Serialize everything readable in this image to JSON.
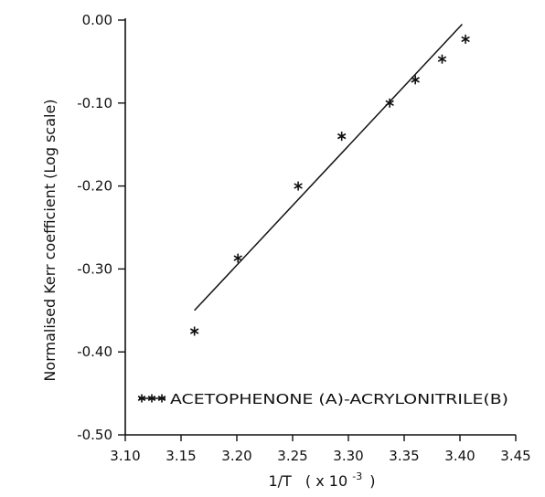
{
  "chart_data": {
    "type": "scatter",
    "title": "",
    "xlabel_main": "1/T",
    "xlabel_unit": "( x 10",
    "xlabel_exp": "-3",
    "xlabel_close": ")",
    "ylabel": "Normalised Kerr coefficient (Log scale)",
    "xlim": [
      3.1,
      3.45
    ],
    "ylim": [
      -0.5,
      0.0
    ],
    "x_ticks": [
      3.1,
      3.15,
      3.2,
      3.25,
      3.3,
      3.35,
      3.4,
      3.45
    ],
    "x_tick_labels": [
      "3.10",
      "3.15",
      "3.20",
      "3.25",
      "3.30",
      "3.35",
      "3.40",
      "3.45"
    ],
    "y_ticks": [
      0.0,
      -0.1,
      -0.2,
      -0.3,
      -0.4,
      -0.5
    ],
    "y_tick_labels": [
      "0.00",
      "-0.10",
      "-0.20",
      "-0.30",
      "-0.40",
      "-0.50"
    ],
    "grid": false,
    "legend_position": "bottom-left",
    "series": [
      {
        "name": "ACETOPHENONE (A)-ACRYLONITRILE(B)",
        "marker": "asterisk",
        "x": [
          3.162,
          3.201,
          3.255,
          3.294,
          3.337,
          3.36,
          3.384,
          3.405
        ],
        "y": [
          -0.375,
          -0.287,
          -0.2,
          -0.14,
          -0.1,
          -0.072,
          -0.047,
          -0.023
        ]
      }
    ],
    "fit_line": {
      "x": [
        3.162,
        3.402
      ],
      "y": [
        -0.35,
        -0.005
      ]
    }
  }
}
